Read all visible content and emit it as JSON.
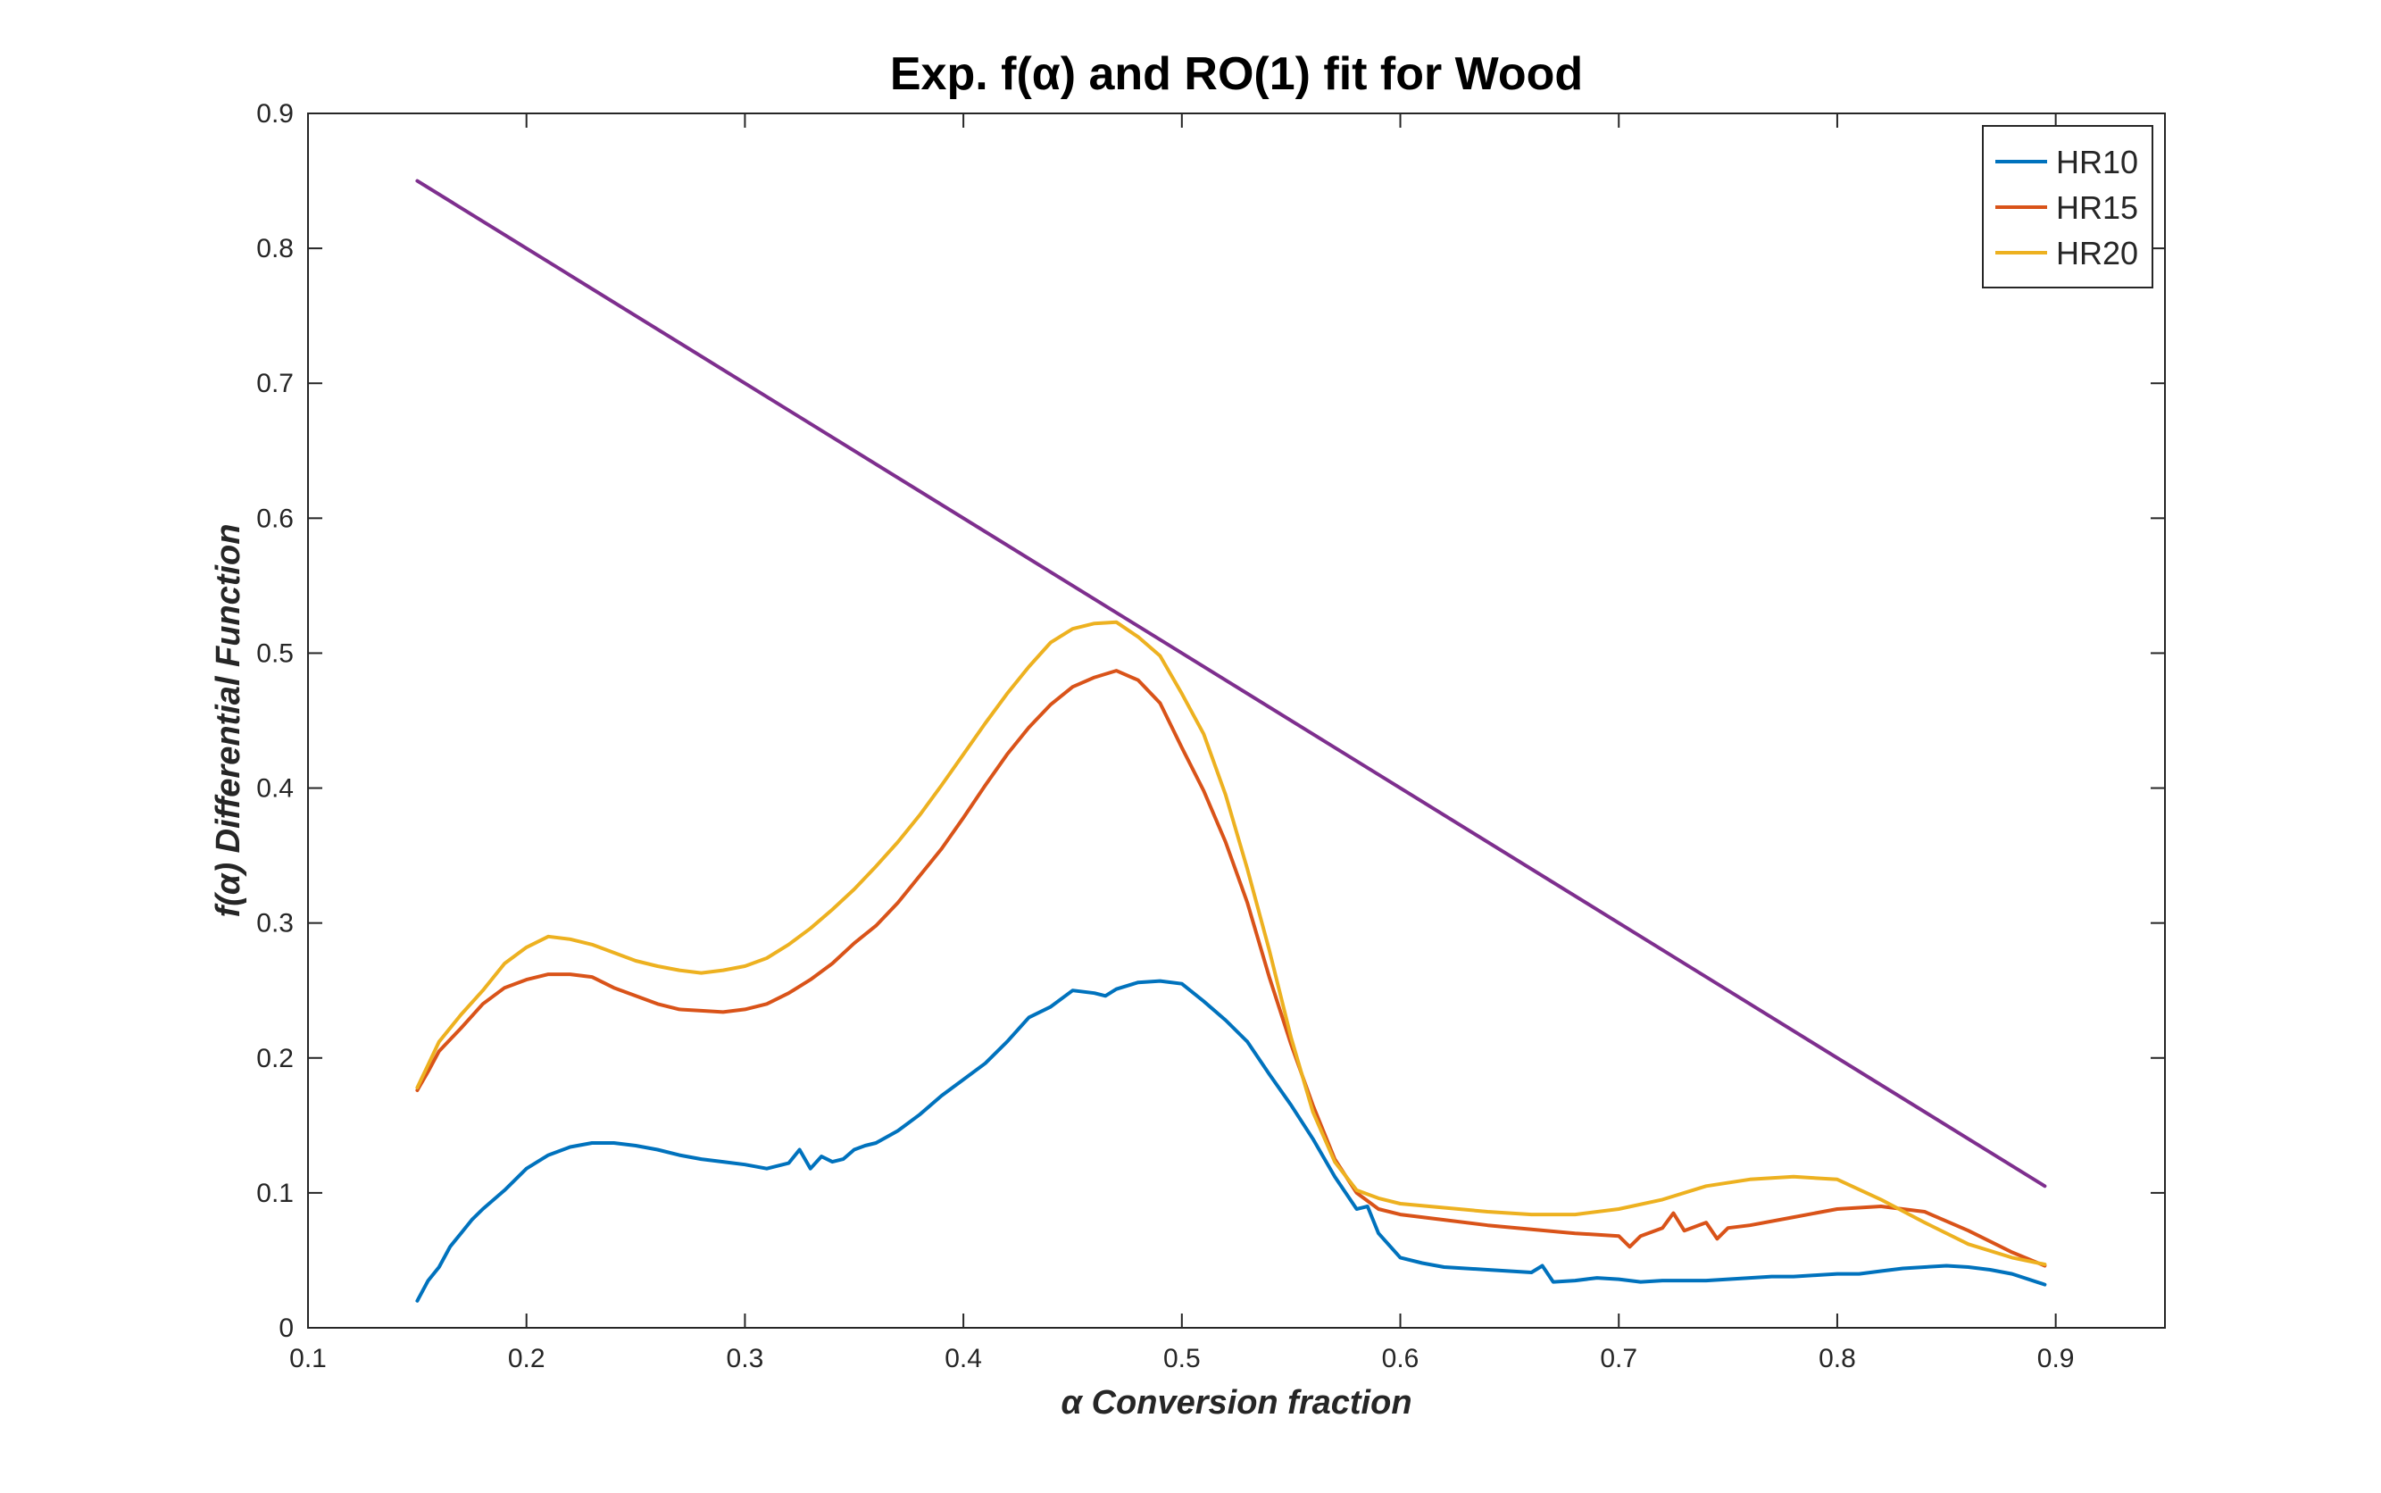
{
  "chart_data": {
    "type": "line",
    "title": "Exp. f(α) and RO(1) fit for Wood",
    "xlabel": "α  Conversion fraction",
    "ylabel": "f(α)  Differential Function",
    "xlim": [
      0.1,
      0.95
    ],
    "ylim": [
      0,
      0.9
    ],
    "xticks": [
      0.1,
      0.2,
      0.3,
      0.4,
      0.5,
      0.6,
      0.7,
      0.8,
      0.9
    ],
    "yticks": [
      0,
      0.1,
      0.2,
      0.3,
      0.4,
      0.5,
      0.6,
      0.7,
      0.8,
      0.9
    ],
    "xtick_labels": [
      "0.1",
      "0.2",
      "0.3",
      "0.4",
      "0.5",
      "0.6",
      "0.7",
      "0.8",
      "0.9"
    ],
    "ytick_labels": [
      "0",
      "0.1",
      "0.2",
      "0.3",
      "0.4",
      "0.5",
      "0.6",
      "0.7",
      "0.8",
      "0.9"
    ],
    "grid": false,
    "legend_position": "top-right",
    "series": [
      {
        "name": "HR10",
        "color": "#0072BD",
        "x": [
          0.15,
          0.155,
          0.16,
          0.165,
          0.17,
          0.175,
          0.18,
          0.19,
          0.2,
          0.21,
          0.22,
          0.23,
          0.24,
          0.25,
          0.26,
          0.27,
          0.28,
          0.29,
          0.3,
          0.31,
          0.32,
          0.325,
          0.33,
          0.335,
          0.34,
          0.345,
          0.35,
          0.355,
          0.36,
          0.37,
          0.38,
          0.39,
          0.4,
          0.41,
          0.42,
          0.43,
          0.44,
          0.45,
          0.46,
          0.465,
          0.47,
          0.48,
          0.49,
          0.5,
          0.51,
          0.52,
          0.53,
          0.54,
          0.55,
          0.56,
          0.57,
          0.58,
          0.585,
          0.59,
          0.6,
          0.61,
          0.62,
          0.63,
          0.64,
          0.65,
          0.66,
          0.665,
          0.67,
          0.68,
          0.69,
          0.7,
          0.71,
          0.72,
          0.73,
          0.74,
          0.75,
          0.76,
          0.77,
          0.78,
          0.79,
          0.8,
          0.81,
          0.82,
          0.83,
          0.84,
          0.85,
          0.86,
          0.87,
          0.88,
          0.895
        ],
        "y": [
          0.02,
          0.035,
          0.045,
          0.06,
          0.07,
          0.08,
          0.088,
          0.102,
          0.118,
          0.128,
          0.134,
          0.137,
          0.137,
          0.135,
          0.132,
          0.128,
          0.125,
          0.123,
          0.121,
          0.118,
          0.122,
          0.132,
          0.118,
          0.127,
          0.123,
          0.125,
          0.132,
          0.135,
          0.137,
          0.146,
          0.158,
          0.172,
          0.184,
          0.196,
          0.212,
          0.23,
          0.238,
          0.25,
          0.248,
          0.246,
          0.251,
          0.256,
          0.257,
          0.255,
          0.242,
          0.228,
          0.212,
          0.188,
          0.165,
          0.14,
          0.112,
          0.088,
          0.09,
          0.07,
          0.052,
          0.048,
          0.045,
          0.044,
          0.043,
          0.042,
          0.041,
          0.046,
          0.034,
          0.035,
          0.037,
          0.036,
          0.034,
          0.035,
          0.035,
          0.035,
          0.036,
          0.037,
          0.038,
          0.038,
          0.039,
          0.04,
          0.04,
          0.042,
          0.044,
          0.045,
          0.046,
          0.045,
          0.043,
          0.04,
          0.032
        ]
      },
      {
        "name": "HR15",
        "color": "#D95319",
        "x": [
          0.15,
          0.155,
          0.16,
          0.17,
          0.18,
          0.19,
          0.2,
          0.21,
          0.22,
          0.23,
          0.24,
          0.25,
          0.26,
          0.27,
          0.28,
          0.29,
          0.3,
          0.31,
          0.32,
          0.33,
          0.34,
          0.35,
          0.36,
          0.37,
          0.38,
          0.39,
          0.4,
          0.41,
          0.42,
          0.43,
          0.44,
          0.45,
          0.46,
          0.47,
          0.48,
          0.49,
          0.5,
          0.51,
          0.52,
          0.53,
          0.54,
          0.55,
          0.56,
          0.57,
          0.58,
          0.59,
          0.6,
          0.62,
          0.64,
          0.66,
          0.68,
          0.7,
          0.705,
          0.71,
          0.72,
          0.725,
          0.73,
          0.74,
          0.745,
          0.75,
          0.76,
          0.78,
          0.8,
          0.82,
          0.84,
          0.86,
          0.88,
          0.895
        ],
        "y": [
          0.176,
          0.19,
          0.205,
          0.222,
          0.24,
          0.252,
          0.258,
          0.262,
          0.262,
          0.26,
          0.252,
          0.246,
          0.24,
          0.236,
          0.235,
          0.234,
          0.236,
          0.24,
          0.248,
          0.258,
          0.27,
          0.285,
          0.298,
          0.315,
          0.335,
          0.355,
          0.378,
          0.402,
          0.425,
          0.445,
          0.462,
          0.475,
          0.482,
          0.487,
          0.48,
          0.463,
          0.43,
          0.398,
          0.36,
          0.315,
          0.26,
          0.21,
          0.165,
          0.125,
          0.1,
          0.088,
          0.084,
          0.08,
          0.076,
          0.073,
          0.07,
          0.068,
          0.06,
          0.068,
          0.074,
          0.085,
          0.072,
          0.078,
          0.066,
          0.074,
          0.076,
          0.082,
          0.088,
          0.09,
          0.086,
          0.072,
          0.056,
          0.046
        ]
      },
      {
        "name": "HR20",
        "color": "#EDB120",
        "x": [
          0.15,
          0.155,
          0.16,
          0.17,
          0.18,
          0.19,
          0.2,
          0.21,
          0.22,
          0.23,
          0.24,
          0.25,
          0.26,
          0.27,
          0.28,
          0.29,
          0.3,
          0.31,
          0.32,
          0.33,
          0.34,
          0.35,
          0.36,
          0.37,
          0.38,
          0.39,
          0.4,
          0.41,
          0.42,
          0.43,
          0.44,
          0.45,
          0.46,
          0.47,
          0.48,
          0.49,
          0.5,
          0.51,
          0.52,
          0.53,
          0.54,
          0.55,
          0.56,
          0.57,
          0.58,
          0.59,
          0.6,
          0.62,
          0.64,
          0.66,
          0.68,
          0.7,
          0.72,
          0.74,
          0.76,
          0.78,
          0.8,
          0.82,
          0.84,
          0.86,
          0.88,
          0.895
        ],
        "y": [
          0.178,
          0.195,
          0.212,
          0.232,
          0.25,
          0.27,
          0.282,
          0.29,
          0.288,
          0.284,
          0.278,
          0.272,
          0.268,
          0.265,
          0.263,
          0.265,
          0.268,
          0.274,
          0.284,
          0.296,
          0.31,
          0.325,
          0.342,
          0.36,
          0.38,
          0.402,
          0.425,
          0.448,
          0.47,
          0.49,
          0.508,
          0.518,
          0.522,
          0.523,
          0.512,
          0.498,
          0.47,
          0.44,
          0.395,
          0.34,
          0.28,
          0.215,
          0.16,
          0.123,
          0.102,
          0.096,
          0.092,
          0.089,
          0.086,
          0.084,
          0.084,
          0.088,
          0.095,
          0.105,
          0.11,
          0.112,
          0.11,
          0.095,
          0.078,
          0.062,
          0.052,
          0.047
        ]
      },
      {
        "color": "#7E2F8E",
        "x": [
          0.15,
          0.895
        ],
        "y": [
          0.85,
          0.105
        ]
      }
    ]
  }
}
